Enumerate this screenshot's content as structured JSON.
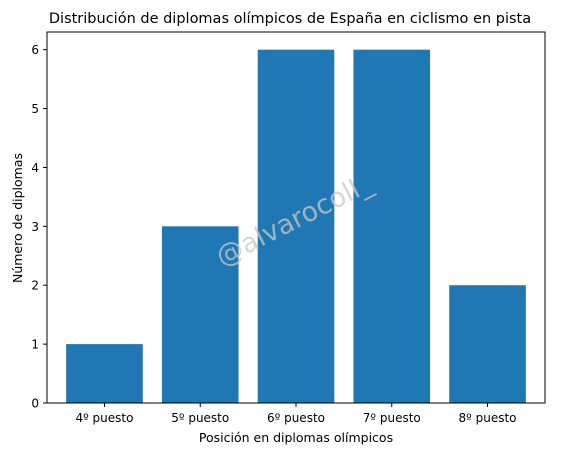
{
  "chart_data": {
    "type": "bar",
    "title": "Distribución de diplomas olímpicos de España en ciclismo en pista",
    "xlabel": "Posición en diplomas olímpicos",
    "ylabel": "Número de diplomas",
    "categories": [
      "4º puesto",
      "5º puesto",
      "6º puesto",
      "7º puesto",
      "8º puesto"
    ],
    "values": [
      1,
      3,
      6,
      6,
      2
    ],
    "ylim": [
      0,
      6.3
    ],
    "yticks": [
      0,
      1,
      2,
      3,
      4,
      5,
      6
    ],
    "bar_color": "#1f77b4",
    "grid": false,
    "legend": "none",
    "watermark": "@alvarocoll_"
  }
}
